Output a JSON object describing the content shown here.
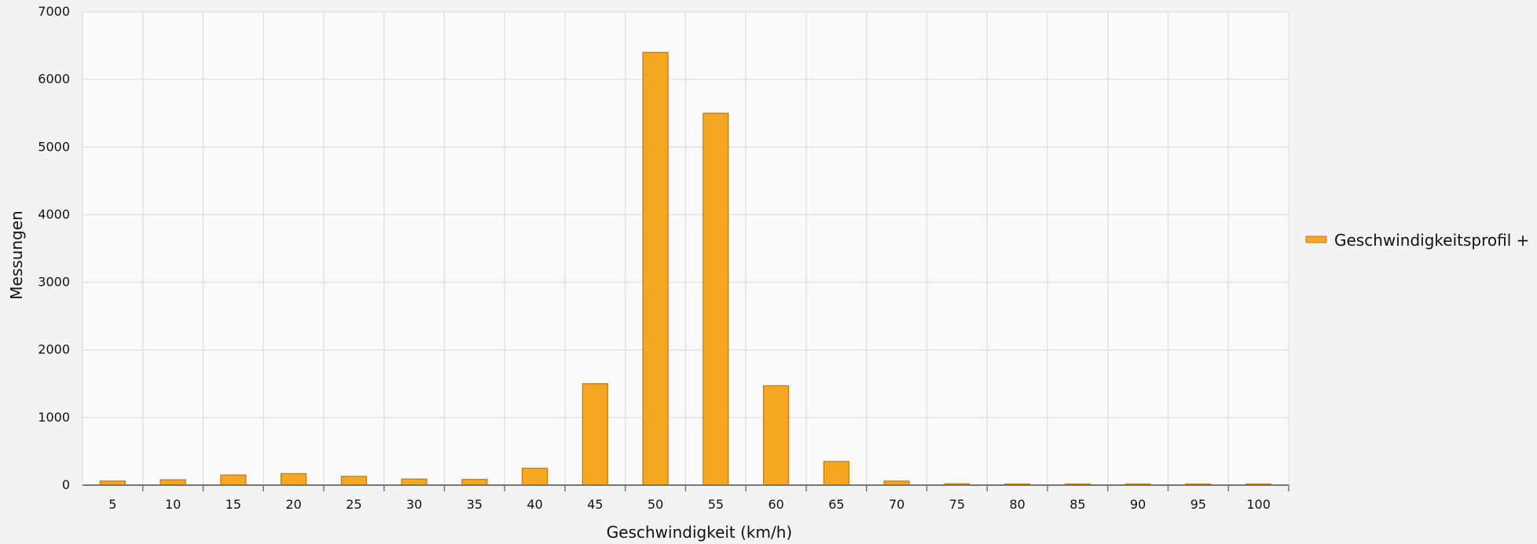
{
  "chart_data": {
    "type": "bar",
    "categories": [
      "5",
      "10",
      "15",
      "20",
      "25",
      "30",
      "35",
      "40",
      "45",
      "50",
      "55",
      "60",
      "65",
      "70",
      "75",
      "80",
      "85",
      "90",
      "95",
      "100"
    ],
    "series": [
      {
        "name": "Geschwindigkeitsprofil +",
        "values": [
          60,
          80,
          150,
          170,
          130,
          90,
          85,
          250,
          1500,
          6400,
          5500,
          1470,
          350,
          60,
          20,
          15,
          5,
          3,
          2,
          2
        ],
        "color": "#f5a623"
      }
    ],
    "xlabel": "Geschwindigkeit (km/h)",
    "ylabel": "Messungen",
    "ylim": [
      0,
      7000
    ],
    "yticks": [
      "0",
      "1000",
      "2000",
      "3000",
      "4000",
      "5000",
      "6000",
      "7000"
    ],
    "grid": true,
    "legend_position": "right"
  }
}
